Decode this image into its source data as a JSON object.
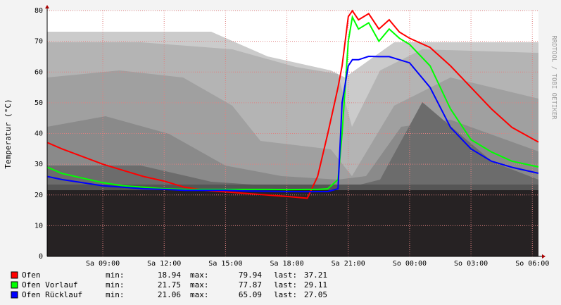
{
  "chart_data": {
    "type": "line",
    "y_label": "Temperatur (°C)",
    "watermark": "RRDTOOL / TOBI OETIKER",
    "x": [
      6.3,
      7,
      8,
      9,
      10,
      11,
      12,
      13,
      14,
      15,
      16,
      17,
      18,
      19,
      19.5,
      20,
      20.5,
      20.7,
      21,
      21.2,
      21.5,
      22,
      22.5,
      23,
      23.5,
      24,
      25,
      26,
      27,
      28,
      29,
      30.3
    ],
    "xlim": [
      6.28,
      30.3
    ],
    "xticks": [
      {
        "value": 9,
        "label": "Sa 09:00"
      },
      {
        "value": 12,
        "label": "Sa 12:00"
      },
      {
        "value": 15,
        "label": "Sa 15:00"
      },
      {
        "value": 18,
        "label": "Sa 18:00"
      },
      {
        "value": 21,
        "label": "Sa 21:00"
      },
      {
        "value": 24,
        "label": "So 00:00"
      },
      {
        "value": 27,
        "label": "So 03:00"
      },
      {
        "value": 30,
        "label": "So 06:00"
      }
    ],
    "ylim": [
      0,
      80
    ],
    "yticks": [
      0,
      10,
      20,
      30,
      40,
      50,
      60,
      70,
      80
    ],
    "grid": true,
    "stat_labels": [
      "min:",
      "max:",
      "last:"
    ],
    "series": [
      {
        "name": "Ofen",
        "color": "#ff0000",
        "min": 18.94,
        "max": 79.94,
        "last": 37.21,
        "values": [
          37,
          35,
          32.5,
          30,
          28,
          26,
          24.5,
          22.5,
          21.5,
          21,
          20.5,
          20,
          19.5,
          18.94,
          26,
          40,
          55,
          62,
          78,
          79.94,
          77,
          79,
          74,
          77,
          73,
          71,
          68,
          62,
          55,
          48,
          42,
          37.21
        ]
      },
      {
        "name": "Ofen Vorlauf",
        "color": "#00ff00",
        "min": 21.75,
        "max": 77.87,
        "last": 29.11,
        "values": [
          29,
          27,
          25.5,
          24,
          23,
          22.5,
          22,
          21.8,
          21.8,
          21.8,
          21.8,
          21.8,
          21.75,
          21.8,
          21.8,
          22,
          25,
          40,
          70,
          77.87,
          74,
          76,
          70,
          74,
          71,
          69,
          62,
          48,
          38,
          34,
          31,
          29.11
        ]
      },
      {
        "name": "Ofen Rücklauf",
        "color": "#0000ff",
        "min": 21.06,
        "max": 65.09,
        "last": 27.05,
        "values": [
          26,
          25,
          24,
          23,
          22.5,
          22,
          21.8,
          21.5,
          21.5,
          21.5,
          21.3,
          21.2,
          21.1,
          21.06,
          21.1,
          21.1,
          22,
          50,
          62,
          64,
          64,
          65.09,
          65,
          65,
          64,
          63,
          55,
          42,
          35,
          31,
          29,
          27.05
        ]
      }
    ]
  }
}
